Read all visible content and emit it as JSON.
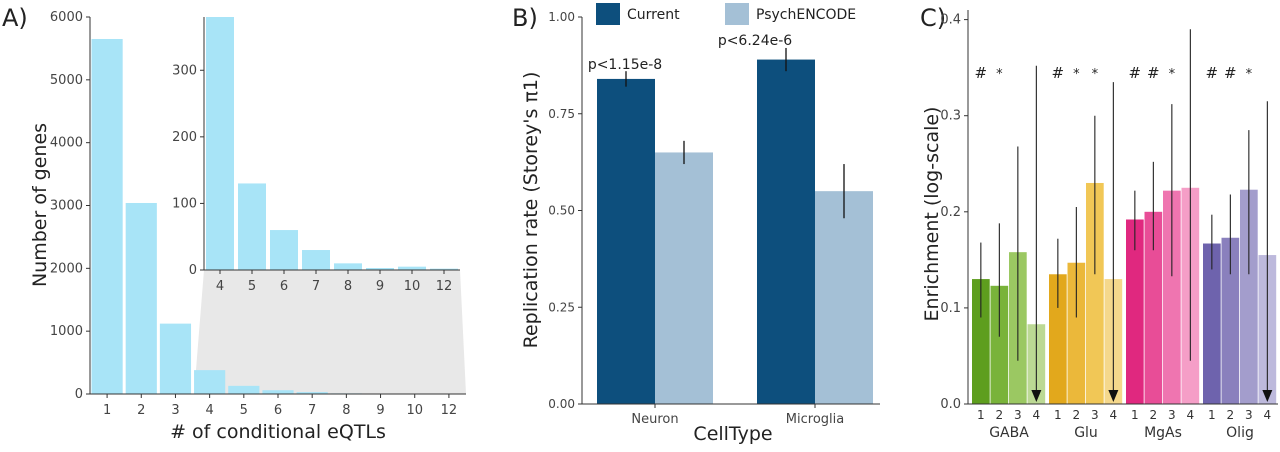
{
  "chart_data": [
    {
      "panel": "A)",
      "type": "bar",
      "xlabel": "# of conditional eQTLs",
      "ylabel": "Number of genes",
      "categories": [
        "1",
        "2",
        "3",
        "4",
        "5",
        "6",
        "7",
        "8",
        "9",
        "10",
        "12"
      ],
      "values": [
        5650,
        3040,
        1120,
        380,
        130,
        60,
        30,
        10,
        3,
        5,
        2
      ],
      "ylim": [
        0,
        6000
      ],
      "yticks": [
        "0",
        "1000",
        "2000",
        "3000",
        "4000",
        "5000",
        "6000"
      ],
      "bar_color": "#a8e4f7",
      "inset": {
        "type": "bar",
        "categories": [
          "4",
          "5",
          "6",
          "7",
          "8",
          "9",
          "10",
          "12"
        ],
        "values": [
          380,
          130,
          60,
          30,
          10,
          3,
          5,
          2
        ],
        "ylim": [
          0,
          380
        ],
        "yticks": [
          "0",
          "100",
          "200",
          "300"
        ]
      }
    },
    {
      "panel": "B)",
      "type": "bar",
      "xlabel": "CellType",
      "ylabel": "Replication rate (Storey's π1)",
      "categories": [
        "Neuron",
        "Microglia"
      ],
      "series": [
        {
          "name": "Current",
          "color": "#0d4f7d",
          "values": [
            0.84,
            0.89
          ],
          "err_low": [
            0.82,
            0.86
          ],
          "err_high": [
            0.86,
            0.92
          ]
        },
        {
          "name": "PsychENCODE",
          "color": "#a4c0d6",
          "values": [
            0.65,
            0.55
          ],
          "err_low": [
            0.62,
            0.48
          ],
          "err_high": [
            0.68,
            0.62
          ]
        }
      ],
      "annotations": [
        "p<1.15e-8",
        "p<6.24e-6"
      ],
      "ylim": [
        0,
        1.0
      ],
      "yticks": [
        "0.00",
        "0.25",
        "0.50",
        "0.75",
        "1.00"
      ],
      "legend_position": "top"
    },
    {
      "panel": "C)",
      "type": "bar",
      "ylabel": "Enrichment (log-scale)",
      "groups": [
        {
          "name": "GABA",
          "bars": [
            {
              "label": "1",
              "value": 0.13,
              "low": 0.09,
              "high": 0.168,
              "color": "#5e9e1e",
              "mark": "#"
            },
            {
              "label": "2",
              "value": 0.123,
              "low": 0.07,
              "high": 0.188,
              "color": "#79b33a",
              "mark": "*"
            },
            {
              "label": "3",
              "value": 0.158,
              "low": 0.045,
              "high": 0.268,
              "color": "#9bc862",
              "mark": ""
            },
            {
              "label": "4",
              "value": 0.083,
              "low": 0.0,
              "high": 0.352,
              "color": "#bcd994",
              "mark": "",
              "arrow": true
            }
          ]
        },
        {
          "name": "Glu",
          "bars": [
            {
              "label": "1",
              "value": 0.135,
              "low": 0.1,
              "high": 0.172,
              "color": "#e2a81c",
              "mark": "#"
            },
            {
              "label": "2",
              "value": 0.147,
              "low": 0.09,
              "high": 0.205,
              "color": "#ebb83a",
              "mark": "*"
            },
            {
              "label": "3",
              "value": 0.23,
              "low": 0.135,
              "high": 0.3,
              "color": "#f1c756",
              "mark": "*"
            },
            {
              "label": "4",
              "value": 0.13,
              "low": 0.0,
              "high": 0.335,
              "color": "#f5d88c",
              "mark": "",
              "arrow": true
            }
          ]
        },
        {
          "name": "MgAs",
          "bars": [
            {
              "label": "1",
              "value": 0.192,
              "low": 0.16,
              "high": 0.222,
              "color": "#e0287f",
              "mark": "#"
            },
            {
              "label": "2",
              "value": 0.2,
              "low": 0.16,
              "high": 0.252,
              "color": "#e84d97",
              "mark": "#"
            },
            {
              "label": "3",
              "value": 0.222,
              "low": 0.133,
              "high": 0.312,
              "color": "#ef75b0",
              "mark": "*"
            },
            {
              "label": "4",
              "value": 0.225,
              "low": 0.045,
              "high": 0.39,
              "color": "#f59ec7",
              "mark": ""
            }
          ]
        },
        {
          "name": "Olig",
          "bars": [
            {
              "label": "1",
              "value": 0.167,
              "low": 0.14,
              "high": 0.197,
              "color": "#6e63ad",
              "mark": "#"
            },
            {
              "label": "2",
              "value": 0.173,
              "low": 0.135,
              "high": 0.218,
              "color": "#8a80bd",
              "mark": "#"
            },
            {
              "label": "3",
              "value": 0.223,
              "low": 0.135,
              "high": 0.285,
              "color": "#a39dcc",
              "mark": "*"
            },
            {
              "label": "4",
              "value": 0.155,
              "low": 0.0,
              "high": 0.315,
              "color": "#bdb9dc",
              "mark": "",
              "arrow": true
            }
          ]
        }
      ],
      "ylim": [
        0,
        0.41
      ],
      "yticks": [
        "0.0",
        "0.1",
        "0.2",
        "0.3",
        "0.4"
      ]
    }
  ]
}
